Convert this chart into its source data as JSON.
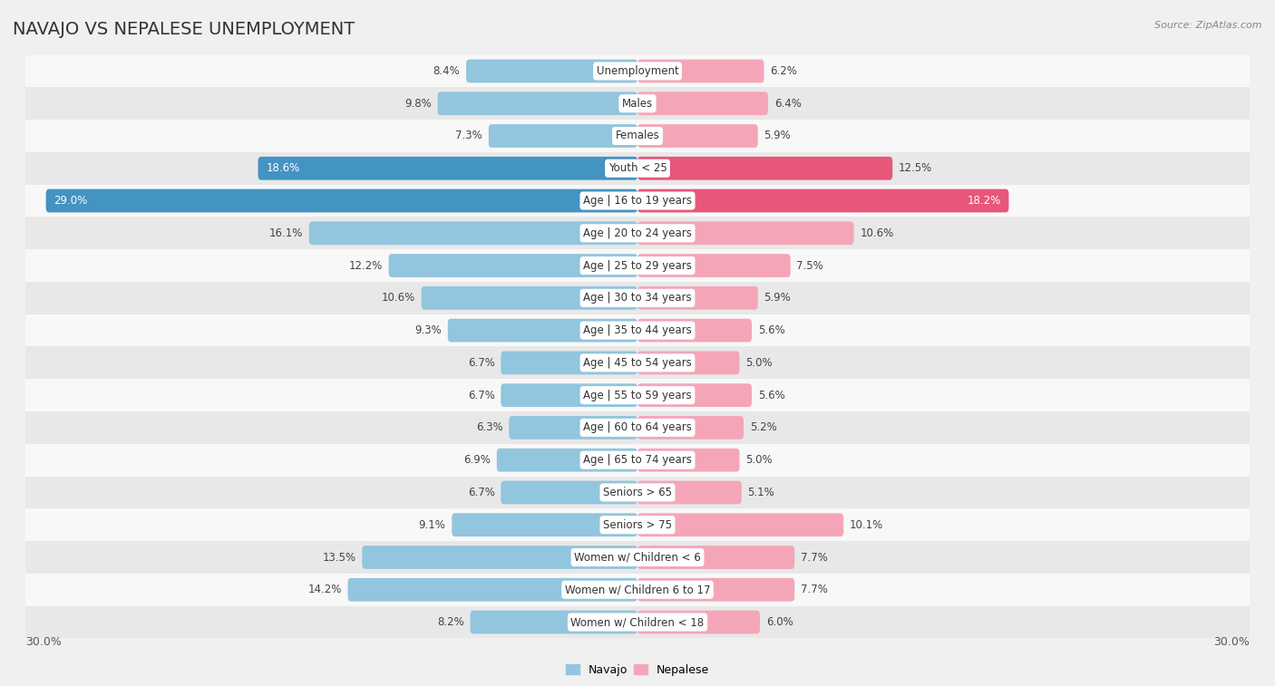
{
  "title": "NAVAJO VS NEPALESE UNEMPLOYMENT",
  "source": "Source: ZipAtlas.com",
  "categories": [
    "Unemployment",
    "Males",
    "Females",
    "Youth < 25",
    "Age | 16 to 19 years",
    "Age | 20 to 24 years",
    "Age | 25 to 29 years",
    "Age | 30 to 34 years",
    "Age | 35 to 44 years",
    "Age | 45 to 54 years",
    "Age | 55 to 59 years",
    "Age | 60 to 64 years",
    "Age | 65 to 74 years",
    "Seniors > 65",
    "Seniors > 75",
    "Women w/ Children < 6",
    "Women w/ Children 6 to 17",
    "Women w/ Children < 18"
  ],
  "navajo": [
    8.4,
    9.8,
    7.3,
    18.6,
    29.0,
    16.1,
    12.2,
    10.6,
    9.3,
    6.7,
    6.7,
    6.3,
    6.9,
    6.7,
    9.1,
    13.5,
    14.2,
    8.2
  ],
  "nepalese": [
    6.2,
    6.4,
    5.9,
    12.5,
    18.2,
    10.6,
    7.5,
    5.9,
    5.6,
    5.0,
    5.6,
    5.2,
    5.0,
    5.1,
    10.1,
    7.7,
    7.7,
    6.0
  ],
  "navajo_color": "#92c5de",
  "nepalese_color": "#f4a6b8",
  "navajo_highlight_color": "#4393c3",
  "nepalese_highlight_color": "#e8567a",
  "background_color": "#f0f0f0",
  "row_bg_odd": "#e8e8e8",
  "row_bg_even": "#f8f8f8",
  "max_val": 30.0,
  "bar_height": 0.72,
  "title_fontsize": 14,
  "label_fontsize": 8.5,
  "cat_fontsize": 8.5,
  "footer_fontsize": 9
}
